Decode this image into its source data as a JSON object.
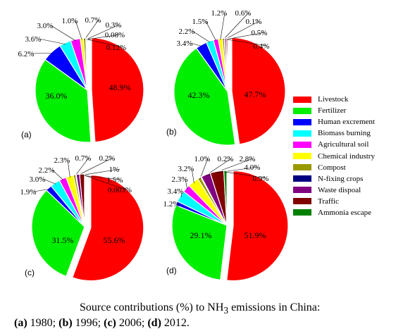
{
  "chart_data": [
    {
      "type": "pie",
      "panel_label": "(a)",
      "slices": [
        {
          "category": "Livestock",
          "value": 48.9,
          "label": "48.9%"
        },
        {
          "category": "Fertilizer",
          "value": 36.0,
          "label": "36.0%"
        },
        {
          "category": "Human excrement",
          "value": 6.2,
          "label": "6.2%"
        },
        {
          "category": "Biomass burning",
          "value": 3.6,
          "label": "3.6%"
        },
        {
          "category": "Agricultural soil",
          "value": 3.0,
          "label": "3.0%"
        },
        {
          "category": "Chemical industry",
          "value": 1.0,
          "label": "1.0%"
        },
        {
          "category": "Compost",
          "value": 0.7,
          "label": "0.7%"
        },
        {
          "category": "N-fixing crops",
          "value": 0.3,
          "label": "0.3%"
        },
        {
          "category": "Waste dispoal",
          "value": 0.08,
          "label": "0.08%"
        },
        {
          "category": "Traffic",
          "value": 0.12,
          "label": "0.12%"
        }
      ]
    },
    {
      "type": "pie",
      "panel_label": "(b)",
      "slices": [
        {
          "category": "Livestock",
          "value": 47.7,
          "label": "47.7%"
        },
        {
          "category": "Fertilizer",
          "value": 42.3,
          "label": "42.3%"
        },
        {
          "category": "Human excrement",
          "value": 3.4,
          "label": "3.4%"
        },
        {
          "category": "Biomass burning",
          "value": 2.2,
          "label": "2.2%"
        },
        {
          "category": "Agricultural soil",
          "value": 1.5,
          "label": "1.5%"
        },
        {
          "category": "Chemical industry",
          "value": 1.2,
          "label": "1.2%"
        },
        {
          "category": "Compost",
          "value": 0.6,
          "label": "0.6%"
        },
        {
          "category": "N-fixing crops",
          "value": 0.1,
          "label": "0.1%"
        },
        {
          "category": "Waste dispoal",
          "value": 0.5,
          "label": "0.5%"
        },
        {
          "category": "Traffic",
          "value": 0.4,
          "label": "0.4%"
        }
      ]
    },
    {
      "type": "pie",
      "panel_label": "(c)",
      "slices": [
        {
          "category": "Livestock",
          "value": 55.6,
          "label": "55.6%"
        },
        {
          "category": "Fertilizer",
          "value": 31.5,
          "label": "31.5%"
        },
        {
          "category": "Human excrement",
          "value": 1.9,
          "label": "1.9%"
        },
        {
          "category": "Biomass burning",
          "value": 3.0,
          "label": "3.0%"
        },
        {
          "category": "Agricultural soil",
          "value": 2.2,
          "label": "2.2%"
        },
        {
          "category": "Chemical industry",
          "value": 2.3,
          "label": "2.3%"
        },
        {
          "category": "Compost",
          "value": 0.7,
          "label": "0.7%"
        },
        {
          "category": "N-fixing crops",
          "value": 0.2,
          "label": "0.2%"
        },
        {
          "category": "Waste dispoal",
          "value": 1,
          "label": "1%"
        },
        {
          "category": "Traffic",
          "value": 1.5,
          "label": "1.5%"
        },
        {
          "category": "Ammonia escape",
          "value": 0.003,
          "label": "0.003%"
        }
      ]
    },
    {
      "type": "pie",
      "panel_label": "(d)",
      "slices": [
        {
          "category": "Livestock",
          "value": 51.9,
          "label": "51.9%"
        },
        {
          "category": "Fertilizer",
          "value": 29.1,
          "label": "29.1%"
        },
        {
          "category": "Human excrement",
          "value": 1.2,
          "label": "1.2%"
        },
        {
          "category": "Biomass burning",
          "value": 3.4,
          "label": "3.4%"
        },
        {
          "category": "Agricultural soil",
          "value": 2.3,
          "label": "2.3%"
        },
        {
          "category": "Chemical industry",
          "value": 3.2,
          "label": "3.2%"
        },
        {
          "category": "Compost",
          "value": 1.0,
          "label": "1.0%"
        },
        {
          "category": "N-fixing crops",
          "value": 0.2,
          "label": "0.2%"
        },
        {
          "category": "Waste dispoal",
          "value": 2.8,
          "label": "2.8%"
        },
        {
          "category": "Traffic",
          "value": 4.0,
          "label": "4.0%"
        },
        {
          "category": "Ammonia escape",
          "value": 0.9,
          "label": "0.9%"
        }
      ]
    }
  ],
  "legend": [
    {
      "label": "Livestock",
      "color": "#ff0000"
    },
    {
      "label": "Fertilizer",
      "color": "#00ee00"
    },
    {
      "label": "Human excrement",
      "color": "#0000ff"
    },
    {
      "label": "Biomass burning",
      "color": "#00ffff"
    },
    {
      "label": "Agricultural soil",
      "color": "#ff00ff"
    },
    {
      "label": "Chemical industry",
      "color": "#ffff00"
    },
    {
      "label": "Compost",
      "color": "#999900"
    },
    {
      "label": "N-fixing crops",
      "color": "#000080"
    },
    {
      "label": "Waste dispoal",
      "color": "#800080"
    },
    {
      "label": "Traffic",
      "color": "#800000"
    },
    {
      "label": "Ammonia escape",
      "color": "#008000"
    }
  ],
  "caption": {
    "line1_prefix": "Source contributions (%) to NH",
    "line1_sub": "3",
    "line1_suffix": " emissions in China:",
    "a_label": "(a)",
    "a_text": " 1980; ",
    "b_label": "(b)",
    "b_text": " 1996; ",
    "c_label": "(c)",
    "c_text": " 2006; ",
    "d_label": "(d)",
    "d_text": " 2012."
  }
}
